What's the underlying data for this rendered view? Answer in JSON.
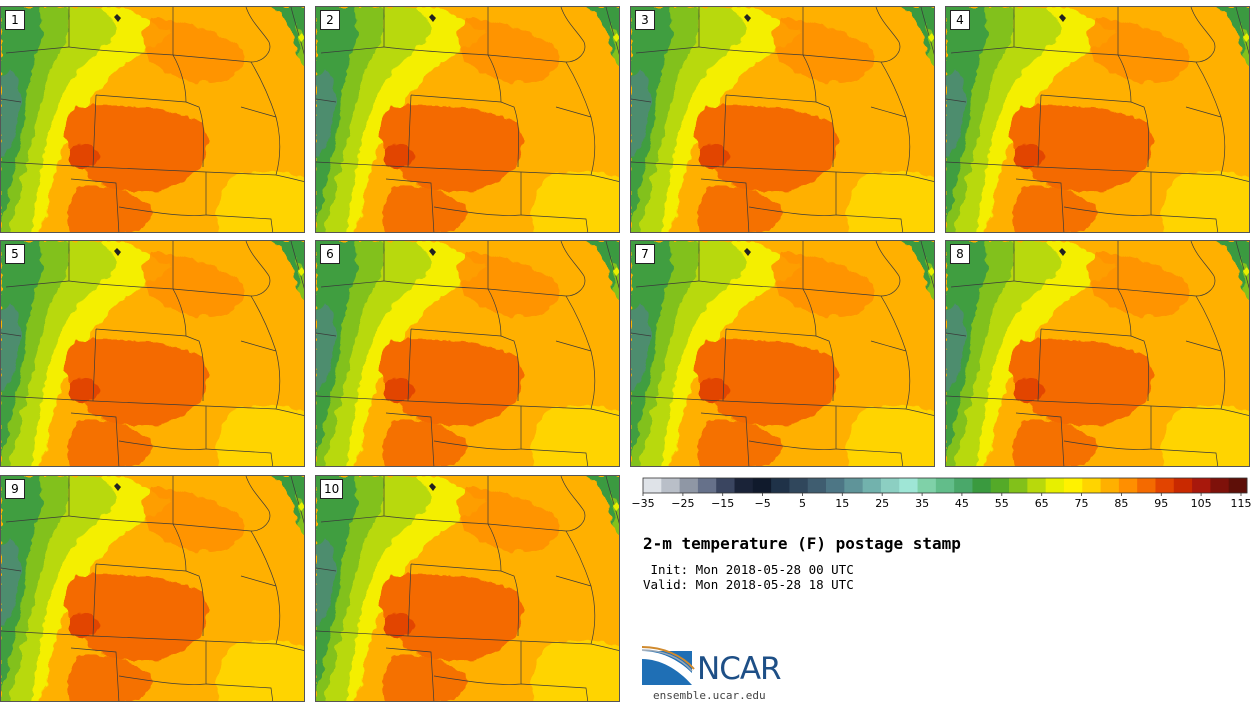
{
  "title": "2-m temperature (F) postage stamp",
  "init_line": " Init: Mon 2018-05-28 00 UTC",
  "valid_line": "Valid: Mon 2018-05-28 18 UTC",
  "members": [
    "1",
    "2",
    "3",
    "4",
    "5",
    "6",
    "7",
    "8",
    "9",
    "10"
  ],
  "colorbar": {
    "tick_labels": [
      "−35",
      "−25",
      "−15",
      "−5",
      "5",
      "15",
      "25",
      "35",
      "45",
      "55",
      "65",
      "75",
      "85",
      "95",
      "105",
      "115"
    ],
    "colors": [
      "#dfe3e8",
      "#b9bfc8",
      "#8f97a5",
      "#66718a",
      "#3a4560",
      "#1a2338",
      "#101a2c",
      "#1f3248",
      "#30475c",
      "#3f5d70",
      "#4d7685",
      "#5f9499",
      "#72b2ad",
      "#8ccfc2",
      "#9fe6d6",
      "#7fd1a8",
      "#62bd8a",
      "#4aa86a",
      "#3a9a3f",
      "#54aa28",
      "#82c11a",
      "#b8d90c",
      "#e7ef00",
      "#fff200",
      "#ffd400",
      "#ffb000",
      "#ff8f00",
      "#f46a00",
      "#e24400",
      "#c92900",
      "#a8180c",
      "#7e110a",
      "#5e0f08"
    ]
  },
  "logo": {
    "brand": "NCAR",
    "url": "ensemble.ucar.edu"
  }
}
